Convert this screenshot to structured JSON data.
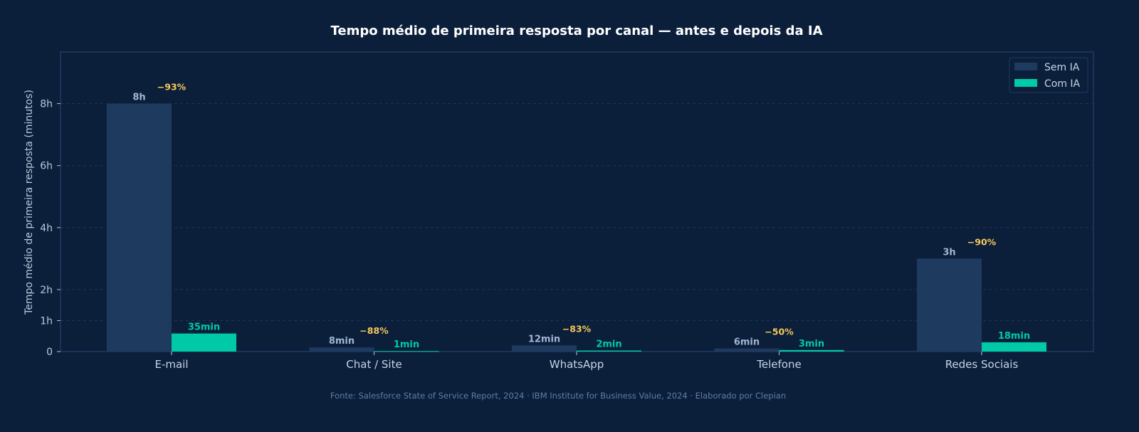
{
  "chart_data": {
    "type": "bar",
    "title": "Tempo médio de primeira resposta por canal — antes e depois da IA",
    "ylabel": "Tempo médio de primeira resposta (minutos)",
    "xlabel": "",
    "ylim": [
      0,
      580
    ],
    "yticks": [
      0,
      60,
      120,
      240,
      360,
      480
    ],
    "ytick_labels": [
      "0",
      "1h",
      "2h",
      "4h",
      "6h",
      "8h"
    ],
    "grid": "horizontal dashed",
    "legend_position": "top-right",
    "categories": [
      "E-mail",
      "Chat / Site",
      "WhatsApp",
      "Telefone",
      "Redes Sociais"
    ],
    "series": [
      {
        "name": "Sem IA",
        "color": "#1f3a5f",
        "label_color": "#9fb6d3",
        "values": [
          480,
          8,
          12,
          6,
          180
        ],
        "labels": [
          "8h",
          "8min",
          "12min",
          "6min",
          "3h"
        ]
      },
      {
        "name": "Com IA",
        "color": "#00c9a7",
        "label_color": "#00c9a7",
        "values": [
          35,
          1,
          2,
          3,
          18
        ],
        "labels": [
          "35min",
          "1min",
          "2min",
          "3min",
          "18min"
        ]
      }
    ],
    "reductions": [
      "−93%",
      "−88%",
      "−83%",
      "−50%",
      "−90%"
    ],
    "reduction_color": "#f5c85a",
    "source": "Fonte: Salesforce State of Service Report, 2024 · IBM Institute for Business Value, 2024 · Elaborado por Clepian"
  }
}
